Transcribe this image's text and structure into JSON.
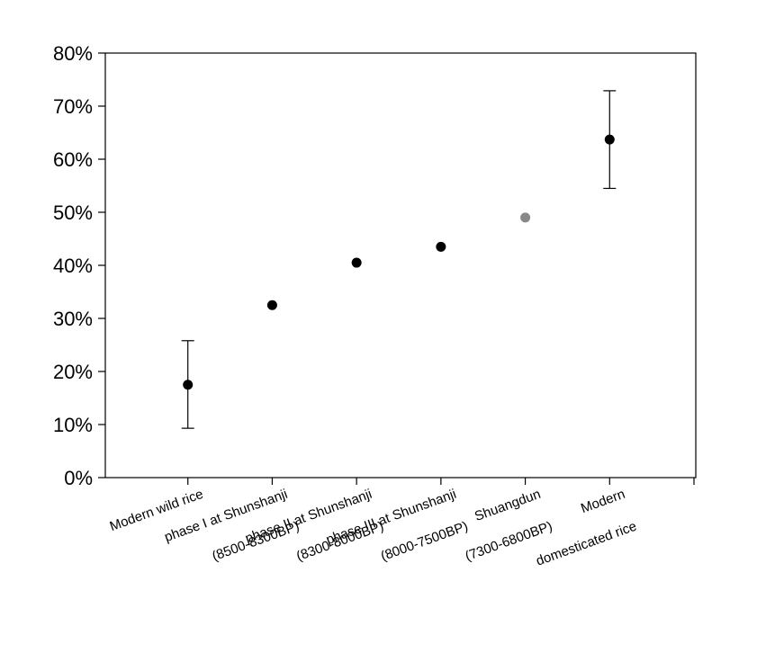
{
  "chart_data": {
    "type": "scatter",
    "title": "",
    "xlabel": "",
    "ylabel": "",
    "ylim": [
      0,
      80
    ],
    "y_ticks": [
      "0%",
      "10%",
      "20%",
      "30%",
      "40%",
      "50%",
      "60%",
      "70%",
      "80%"
    ],
    "grid": false,
    "legend": "none",
    "categories": [
      {
        "line1": "Modern wild rice",
        "line2": ""
      },
      {
        "line1": "phase I at Shunshanji",
        "line2": "(8500-8300BP)"
      },
      {
        "line1": "phase II at Shunshanji",
        "line2": "(8300-8000BP)"
      },
      {
        "line1": "phase III at Shunshanji",
        "line2": "(8000-7500BP)"
      },
      {
        "line1": "Shuangdun",
        "line2": "(7300-6800BP)"
      },
      {
        "line1": "Modern",
        "line2": "domesticated rice"
      }
    ],
    "values": [
      17.5,
      32.5,
      40.5,
      43.5,
      49.0,
      63.7
    ],
    "error_low": [
      9.3,
      null,
      null,
      null,
      null,
      54.5
    ],
    "error_high": [
      25.8,
      null,
      null,
      null,
      null,
      72.9
    ],
    "point_colors": [
      "#000000",
      "#000000",
      "#000000",
      "#000000",
      "#888888",
      "#000000"
    ]
  }
}
